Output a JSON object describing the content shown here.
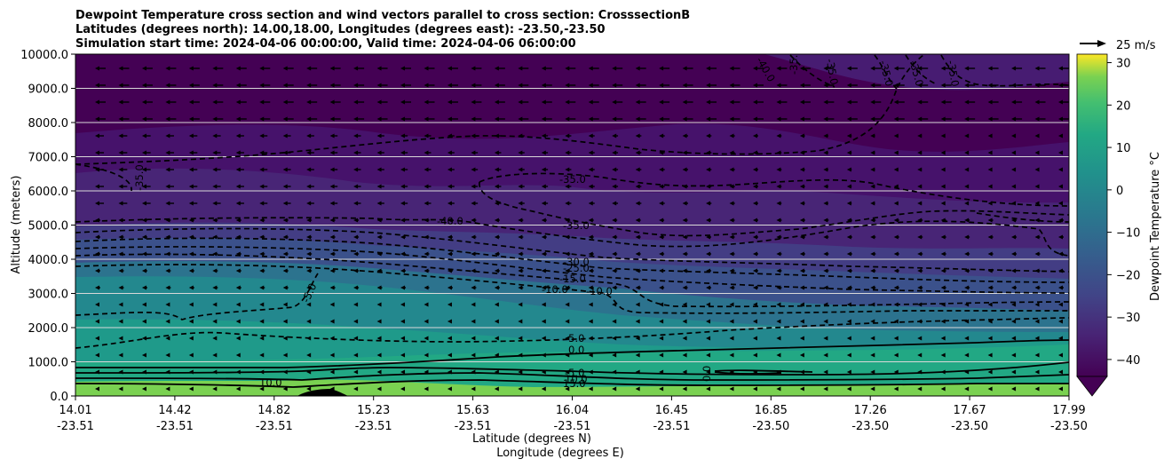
{
  "title_lines": [
    "Dewpoint Temperature cross section and wind vectors parallel to cross section: CrosssectionB",
    "Latitudes (degrees north): 14.00,18.00, Longitudes (degrees east): -23.50,-23.50",
    "Simulation start time: 2024-04-06 00:00:00, Valid time: 2024-04-06 06:00:00"
  ],
  "chart_data": {
    "type": "contour cross-section",
    "title": "Dewpoint Temperature cross section and wind vectors parallel to cross section: CrosssectionB",
    "ylabel": "Altitude (meters)",
    "xlabel_lines": [
      "Latitude (degrees N)",
      "Longitude (degrees E)"
    ],
    "ylim": [
      0,
      10000
    ],
    "y_ticks": [
      "0.0",
      "1000.0",
      "2000.0",
      "3000.0",
      "4000.0",
      "5000.0",
      "6000.0",
      "7000.0",
      "8000.0",
      "9000.0",
      "10000.0"
    ],
    "x_ticks": [
      {
        "lat": "14.01",
        "lon": "-23.51"
      },
      {
        "lat": "14.42",
        "lon": "-23.51"
      },
      {
        "lat": "14.82",
        "lon": "-23.51"
      },
      {
        "lat": "15.23",
        "lon": "-23.51"
      },
      {
        "lat": "15.63",
        "lon": "-23.51"
      },
      {
        "lat": "16.04",
        "lon": "-23.51"
      },
      {
        "lat": "16.45",
        "lon": "-23.51"
      },
      {
        "lat": "16.85",
        "lon": "-23.50"
      },
      {
        "lat": "17.26",
        "lon": "-23.50"
      },
      {
        "lat": "17.67",
        "lon": "-23.50"
      },
      {
        "lat": "17.99",
        "lon": "-23.50"
      }
    ],
    "grid": "horizontal",
    "colorbar": {
      "label": "Dewpoint Temperature °C",
      "ticks": [
        "30",
        "20",
        "10",
        "0",
        "−10",
        "−20",
        "−30",
        "−40"
      ],
      "range": [
        -44,
        32
      ],
      "colormap": "viridis"
    },
    "vector_key_label": "25 m/s",
    "dewpoint_layers": [
      {
        "top_m": 400,
        "value_c": 17
      },
      {
        "top_m": 1000,
        "value_c": 2
      },
      {
        "top_m": 3900,
        "value_c": -10
      },
      {
        "top_m": 5000,
        "value_c": -30
      },
      {
        "top_m": 7500,
        "value_c": -38
      },
      {
        "top_m": 10000,
        "value_c": -43
      }
    ],
    "contour_labels": [
      "-35.0",
      "-35.0",
      "-40.0",
      "-35.0",
      "-30.0",
      "-25.0",
      "-15.0",
      "-10.0",
      "-10.0",
      "-5.0",
      "-5.0",
      "0.0",
      "-5.0",
      "10.0",
      "15.0",
      "10.0",
      "0.0",
      "-40.0",
      "-35.0",
      "-35.0",
      "-35.0",
      "-35.0",
      "-35.0"
    ]
  }
}
